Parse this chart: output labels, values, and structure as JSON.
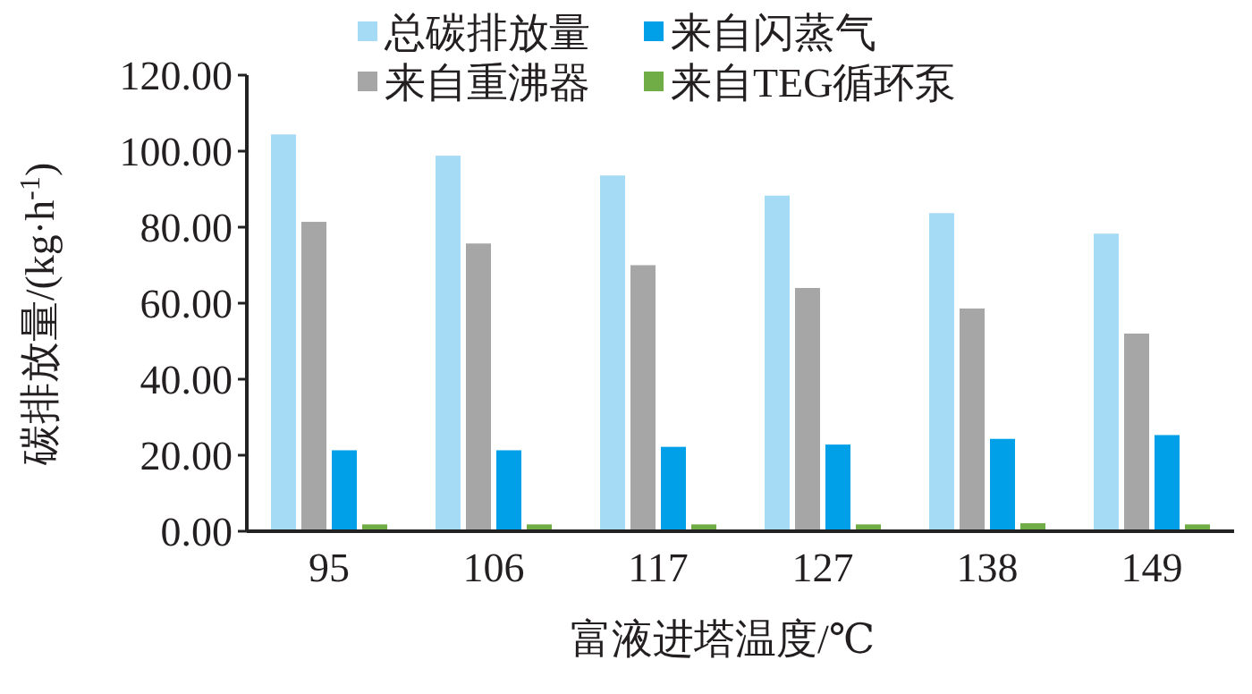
{
  "chart_data": {
    "type": "bar",
    "xlabel": "富液进塔温度/℃",
    "ylabel": "碳排放量/(kg·h$^{-1}$)",
    "categories": [
      "95",
      "106",
      "117",
      "127",
      "138",
      "149"
    ],
    "series": [
      {
        "name": "总碳排放量",
        "color": "#a6dbf5",
        "values": [
          104.4,
          98.8,
          93.6,
          88.3,
          83.7,
          78.3
        ]
      },
      {
        "name": "来自重沸器",
        "color": "#a6a6a6",
        "values": [
          81.4,
          75.7,
          70.0,
          64.0,
          58.6,
          52.0
        ]
      },
      {
        "name": "来自闪蒸气",
        "color": "#00a0e9",
        "values": [
          21.3,
          21.3,
          22.2,
          22.8,
          24.3,
          25.3
        ]
      },
      {
        "name": "来自TEG循环泵",
        "color": "#70ad47",
        "values": [
          1.8,
          1.8,
          1.8,
          1.8,
          2.1,
          1.8
        ]
      }
    ],
    "ylim": [
      0,
      120
    ],
    "yticks": [
      {
        "value": 0,
        "label": "0.00"
      },
      {
        "value": 20,
        "label": "20.00"
      },
      {
        "value": 40,
        "label": "40.00"
      },
      {
        "value": 60,
        "label": "60.00"
      },
      {
        "value": 80,
        "label": "80.00"
      },
      {
        "value": 100,
        "label": "100.00"
      },
      {
        "value": 120,
        "label": "120.00"
      }
    ],
    "grid": false,
    "legend": "top"
  }
}
